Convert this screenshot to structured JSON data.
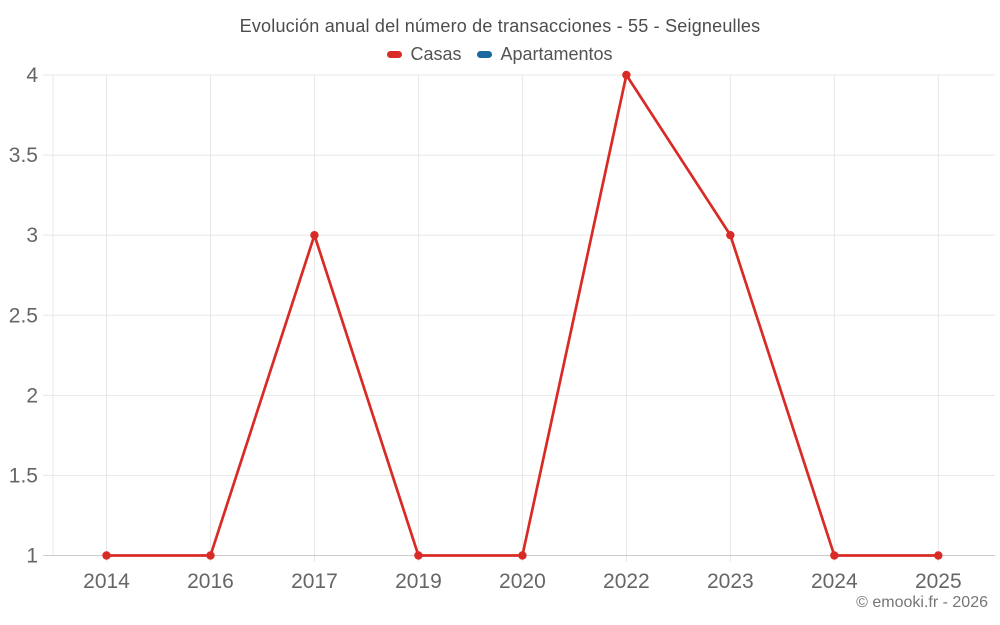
{
  "header": {
    "title": "Evolución anual del número de transacciones - 55 - Seigneulles"
  },
  "footer": {
    "watermark": "© emooki.fr - 2026"
  },
  "chart_data": {
    "type": "line",
    "title": "Evolución anual del número de transacciones - 55 - Seigneulles",
    "categories": [
      "2014",
      "2016",
      "2017",
      "2019",
      "2020",
      "2022",
      "2023",
      "2024",
      "2025"
    ],
    "series": [
      {
        "name": "Casas",
        "color": "#d92b25",
        "values": [
          1,
          1,
          3,
          1,
          1,
          4,
          3,
          1,
          1
        ]
      },
      {
        "name": "Apartamentos",
        "color": "#17699e",
        "values": []
      }
    ],
    "ylim": [
      1,
      4
    ],
    "yticks": [
      1,
      1.5,
      2,
      2.5,
      3,
      3.5,
      4
    ],
    "ytick_labels": [
      "1",
      "1.5",
      "2",
      "2.5",
      "3",
      "3.5",
      "4"
    ],
    "xlabel": "",
    "ylabel": "",
    "grid": true,
    "legend_position": "top",
    "style": {
      "grid_color": "#e8e8e8",
      "axis_color": "#cccccc",
      "tick_label_color": "#666666",
      "title_color": "#4c4c4c",
      "watermark_color": "#767676",
      "background": "#ffffff",
      "marker_radius": 4.2,
      "line_width": 2.7
    }
  }
}
